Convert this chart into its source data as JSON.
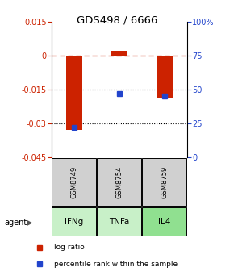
{
  "title": "GDS498 / 6666",
  "samples": [
    "GSM8749",
    "GSM8754",
    "GSM8759"
  ],
  "agents": [
    "IFNg",
    "TNFa",
    "IL4"
  ],
  "agent_colors": [
    "#c8f0c8",
    "#c8f0c8",
    "#90e090"
  ],
  "log_ratios": [
    -0.033,
    0.002,
    -0.019
  ],
  "percentile_ranks": [
    22,
    47,
    45
  ],
  "ylim_left": [
    -0.045,
    0.015
  ],
  "ylim_right": [
    0,
    100
  ],
  "yticks_left": [
    0.015,
    0,
    -0.015,
    -0.03,
    -0.045
  ],
  "yticks_right_vals": [
    0,
    25,
    50,
    75,
    100
  ],
  "yticks_right_labels": [
    "0",
    "25",
    "50",
    "75",
    "100%"
  ],
  "bar_color": "#cc2200",
  "dot_color": "#2244cc",
  "left_tick_color": "#cc2200",
  "right_tick_color": "#2244cc",
  "sample_box_color": "#d0d0d0",
  "figsize": [
    2.9,
    3.36
  ],
  "dpi": 100
}
